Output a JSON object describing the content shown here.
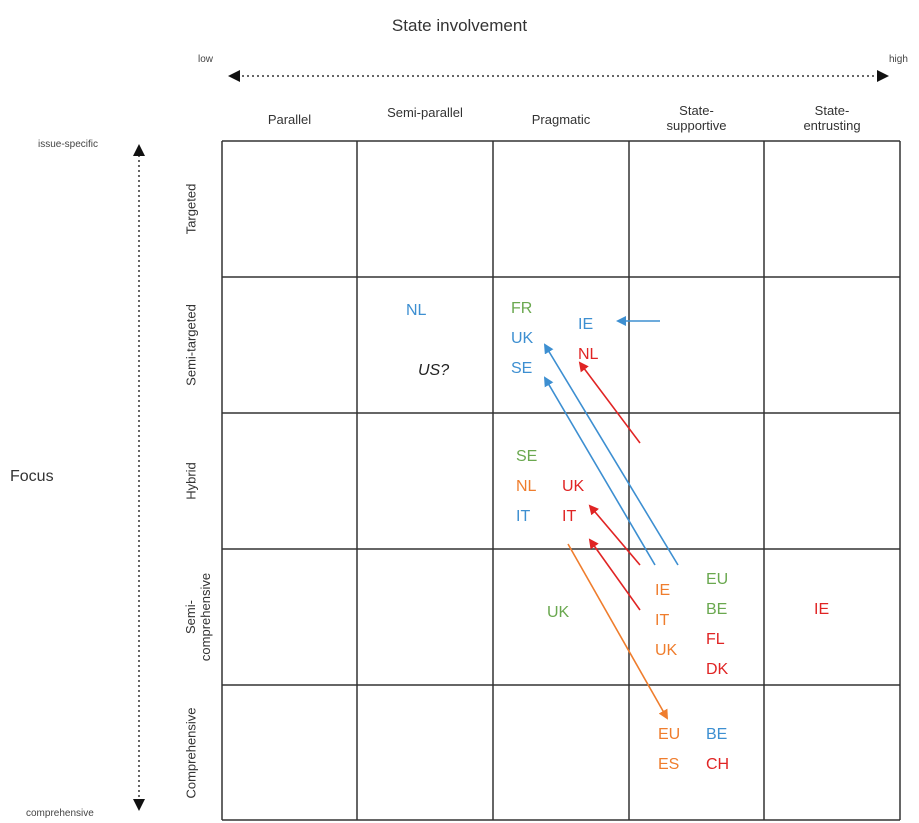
{
  "axes": {
    "x_title": "State involvement",
    "x_low": "low",
    "x_high": "high",
    "y_title": "Focus",
    "y_top": "issue-specific",
    "y_bottom": "comprehensive"
  },
  "columns": [
    "Parallel",
    "Semi-parallel",
    "Pragmatic",
    "State-\nsupportive",
    "State-\nentrusting"
  ],
  "rows": [
    "Targeted",
    "Semi-targeted",
    "Hybrid",
    "Semi-\ncomprehensive",
    "Comprehensive"
  ],
  "colors": {
    "green": "#6aa84f",
    "blue": "#3d8fd1",
    "red": "#e02424",
    "orange": "#ef7d2d",
    "black": "#222222"
  },
  "entries": [
    {
      "text": "NL",
      "color": "blue"
    },
    {
      "text": "US?",
      "color": "black",
      "italic": true
    },
    {
      "text": "FR",
      "color": "green"
    },
    {
      "text": "UK",
      "color": "blue"
    },
    {
      "text": "SE",
      "color": "blue"
    },
    {
      "text": "IE",
      "color": "blue"
    },
    {
      "text": "NL",
      "color": "red"
    },
    {
      "text": "SE",
      "color": "green"
    },
    {
      "text": "NL",
      "color": "orange"
    },
    {
      "text": "IT",
      "color": "blue"
    },
    {
      "text": "UK",
      "color": "red"
    },
    {
      "text": "IT",
      "color": "red"
    },
    {
      "text": "UK",
      "color": "green"
    },
    {
      "text": "IE",
      "color": "orange"
    },
    {
      "text": "IT",
      "color": "orange"
    },
    {
      "text": "UK",
      "color": "orange"
    },
    {
      "text": "EU",
      "color": "green"
    },
    {
      "text": "BE",
      "color": "green"
    },
    {
      "text": "FL",
      "color": "red"
    },
    {
      "text": "DK",
      "color": "red"
    },
    {
      "text": "IE",
      "color": "red"
    },
    {
      "text": "EU",
      "color": "orange"
    },
    {
      "text": "ES",
      "color": "orange"
    },
    {
      "text": "BE",
      "color": "blue"
    },
    {
      "text": "CH",
      "color": "red"
    }
  ],
  "arrows": [
    {
      "color": "blue"
    },
    {
      "color": "red"
    },
    {
      "color": "blue"
    },
    {
      "color": "blue"
    },
    {
      "color": "red"
    },
    {
      "color": "red"
    },
    {
      "color": "orange"
    }
  ]
}
